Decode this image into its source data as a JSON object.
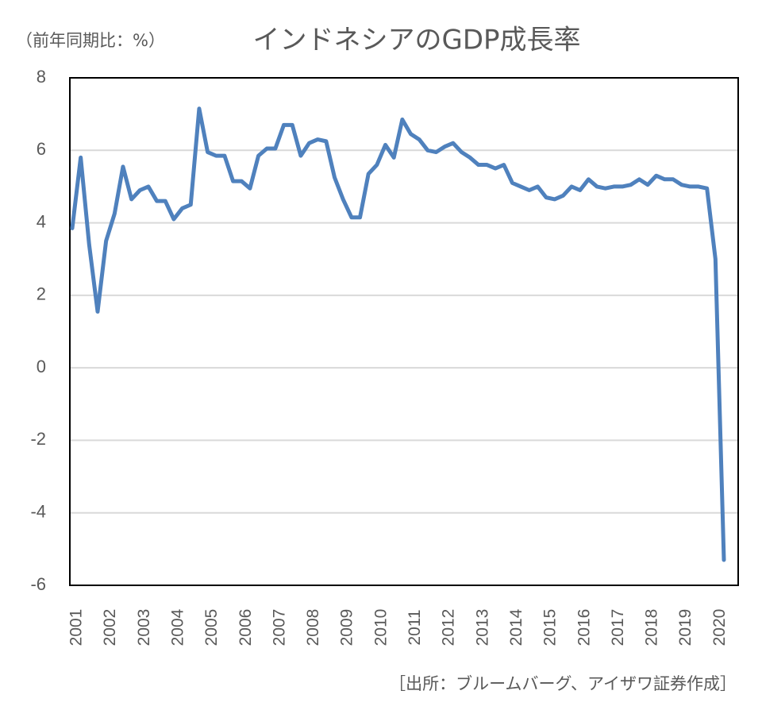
{
  "chart_data": {
    "type": "line",
    "title": "インドネシアのGDP成長率",
    "y_label": "（前年同期比：%）",
    "source": "［出所：ブルームバーグ、アイザワ証券作成］",
    "categories": [
      "2001",
      null,
      null,
      null,
      "2002",
      null,
      null,
      null,
      "2003",
      null,
      null,
      null,
      "2004",
      null,
      null,
      null,
      "2005",
      null,
      null,
      null,
      "2006",
      null,
      null,
      null,
      "2007",
      null,
      null,
      null,
      "2008",
      null,
      null,
      null,
      "2009",
      null,
      null,
      null,
      "2010",
      null,
      null,
      null,
      "2011",
      null,
      null,
      null,
      "2012",
      null,
      null,
      null,
      "2013",
      null,
      null,
      null,
      "2014",
      null,
      null,
      null,
      "2015",
      null,
      null,
      null,
      "2016",
      null,
      null,
      null,
      "2017",
      null,
      null,
      null,
      "2018",
      null,
      null,
      null,
      "2019",
      null,
      null,
      null,
      "2020",
      null
    ],
    "values": [
      3.85,
      5.8,
      3.4,
      1.55,
      3.5,
      4.25,
      5.55,
      4.65,
      4.9,
      5.0,
      4.6,
      4.6,
      4.1,
      4.4,
      4.5,
      7.15,
      5.95,
      5.85,
      5.85,
      5.15,
      5.15,
      4.95,
      5.85,
      6.05,
      6.05,
      6.7,
      6.7,
      5.85,
      6.2,
      6.3,
      6.25,
      5.25,
      4.65,
      4.15,
      4.15,
      5.35,
      5.6,
      6.15,
      5.8,
      6.85,
      6.45,
      6.3,
      6.0,
      5.95,
      6.1,
      6.2,
      5.95,
      5.8,
      5.6,
      5.6,
      5.5,
      5.6,
      5.1,
      5.0,
      4.9,
      5.0,
      4.7,
      4.65,
      4.75,
      5.0,
      4.9,
      5.2,
      5.0,
      4.95,
      5.0,
      5.0,
      5.05,
      5.2,
      5.05,
      5.3,
      5.2,
      5.2,
      5.05,
      5.0,
      5.0,
      4.95,
      3.0,
      -5.3
    ],
    "color": "#4f81bd",
    "ylim": [
      -6,
      8
    ],
    "yticks": [
      -6,
      -4,
      -2,
      0,
      2,
      4,
      6,
      8
    ],
    "grid": true
  }
}
